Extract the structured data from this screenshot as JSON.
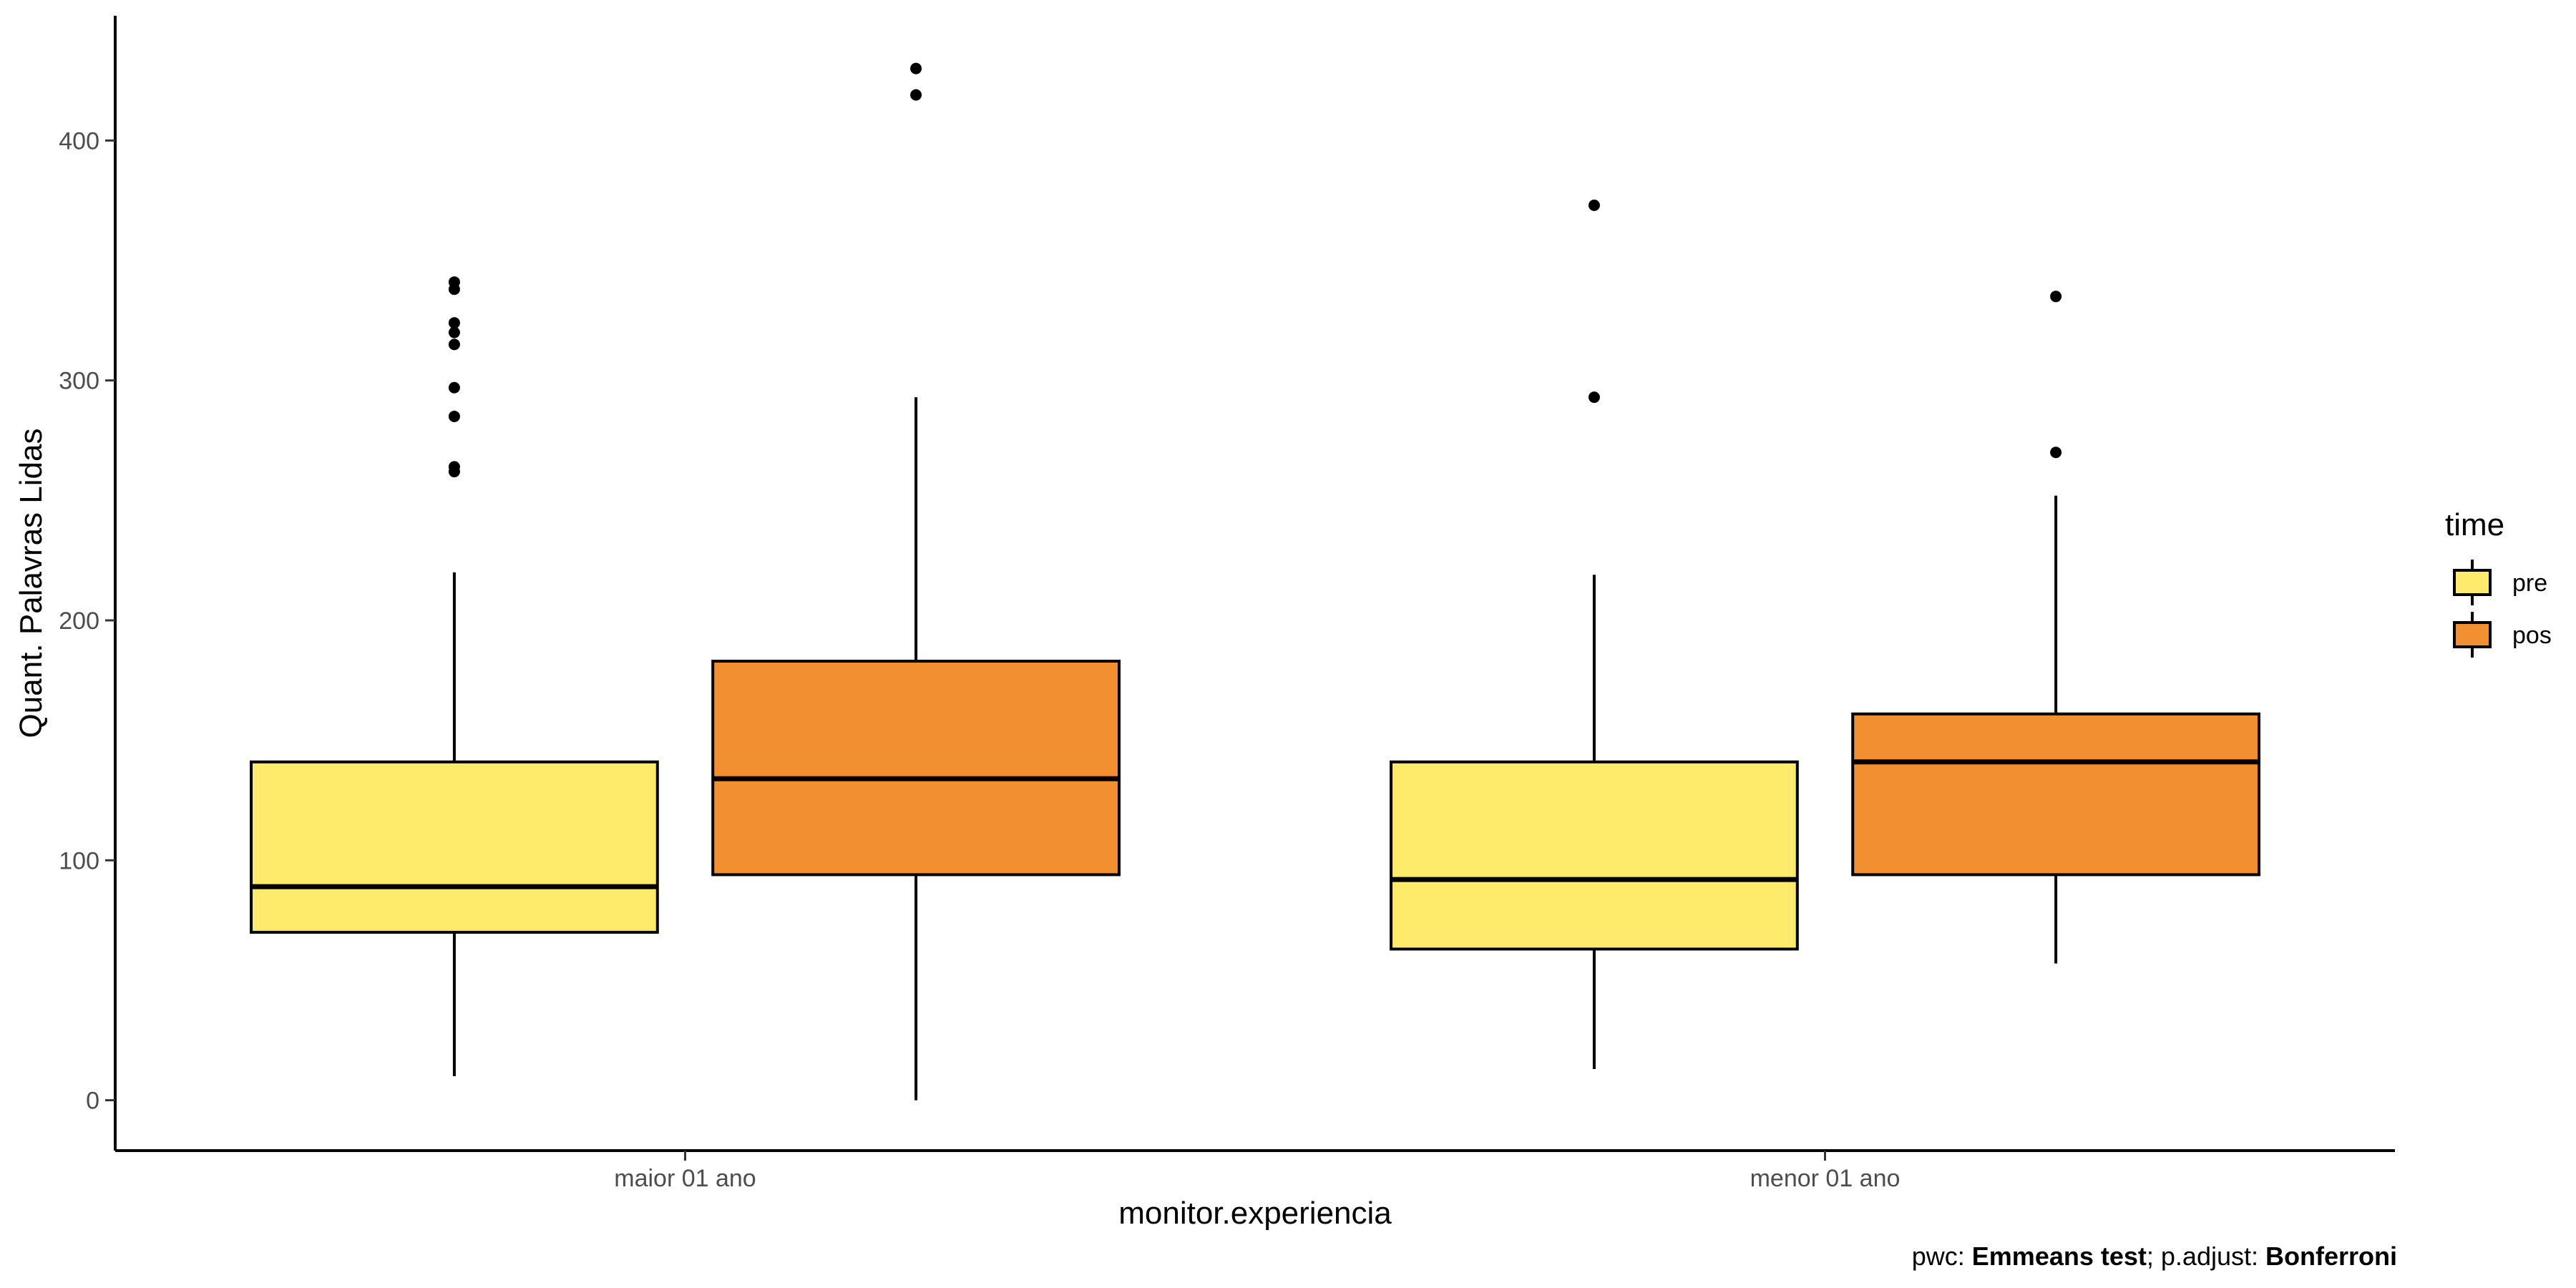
{
  "chart_data": {
    "type": "boxplot",
    "xlabel": "monitor.experiencia",
    "ylabel": "Quant. Palavras Lidas",
    "ylim": [
      -21,
      452
    ],
    "yticks": [
      0,
      100,
      200,
      300,
      400
    ],
    "categories": [
      "maior 01 ano",
      "menor 01 ano"
    ],
    "legend": {
      "title": "time",
      "position": "right",
      "entries": [
        "pre",
        "pos"
      ]
    },
    "grid": false,
    "series": [
      {
        "name": "pre",
        "color": "#FFEB6B",
        "boxes": [
          {
            "category": "maior 01 ano",
            "whisker_low": 10,
            "q1": 70,
            "median": 89,
            "q3": 141,
            "whisker_high": 220,
            "outliers": [
              262,
              264,
              285,
              297,
              315,
              320,
              324,
              338,
              341
            ]
          },
          {
            "category": "menor 01 ano",
            "whisker_low": 13,
            "q1": 63,
            "median": 92,
            "q3": 141,
            "whisker_high": 219,
            "outliers": [
              293,
              373
            ]
          }
        ]
      },
      {
        "name": "pos",
        "color": "#F28F30",
        "boxes": [
          {
            "category": "maior 01 ano",
            "whisker_low": 0,
            "q1": 94,
            "median": 134,
            "q3": 183,
            "whisker_high": 293,
            "outliers": [
              419,
              430
            ]
          },
          {
            "category": "menor 01 ano",
            "whisker_low": 57,
            "q1": 94,
            "median": 141,
            "q3": 161,
            "whisker_high": 252,
            "outliers": [
              270,
              335
            ]
          }
        ]
      }
    ]
  },
  "caption": {
    "prefix": "pwc: ",
    "test": "Emmeans test",
    "middle": "; p.adjust: ",
    "adjust": "Bonferroni"
  }
}
